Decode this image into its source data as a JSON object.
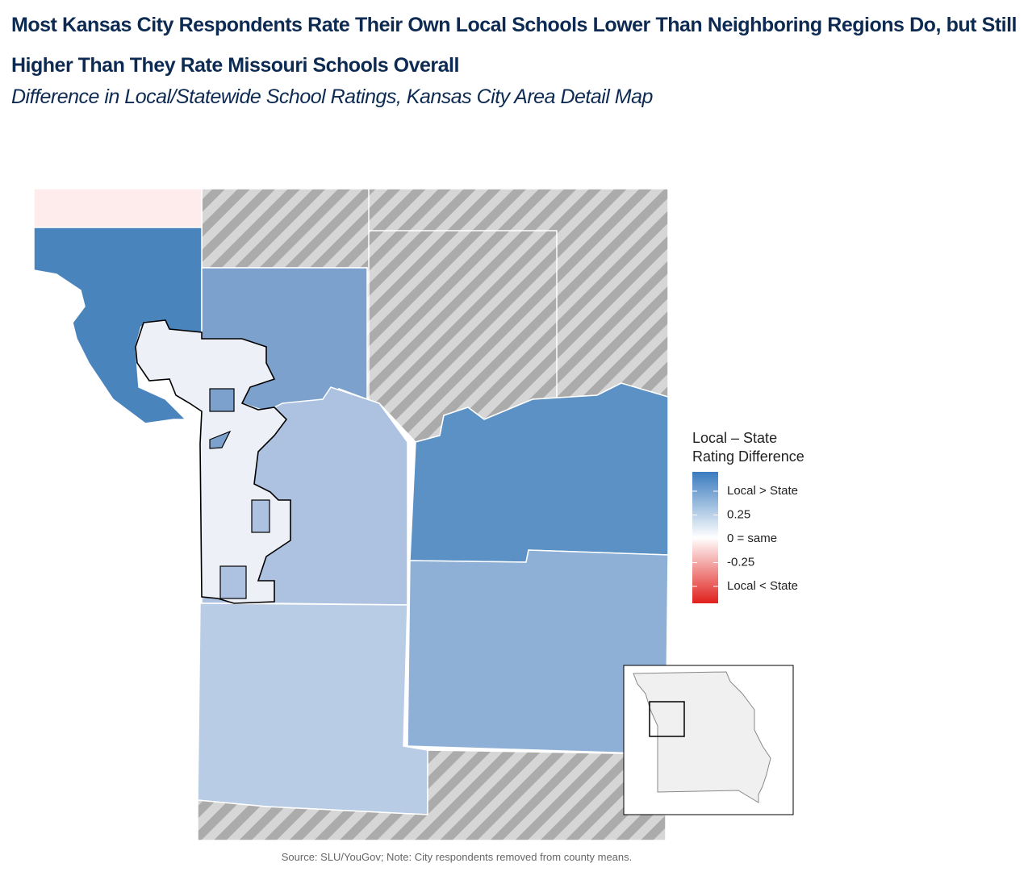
{
  "header": {
    "title": "Most Kansas City Respondents Rate Their Own Local Schools Lower Than Neighboring Regions Do, but Still Higher Than They Rate Missouri Schools Overall",
    "subtitle": "Difference in Local/Statewide School Ratings, Kansas City Area Detail Map"
  },
  "legend": {
    "title": [
      "Local – State",
      "Rating Difference"
    ],
    "labels": [
      "Local > State",
      "0.25",
      "0 = same",
      "-0.25",
      "Local < State"
    ]
  },
  "source": "Source: SLU/YouGov; Note: City respondents removed from county means."
}
